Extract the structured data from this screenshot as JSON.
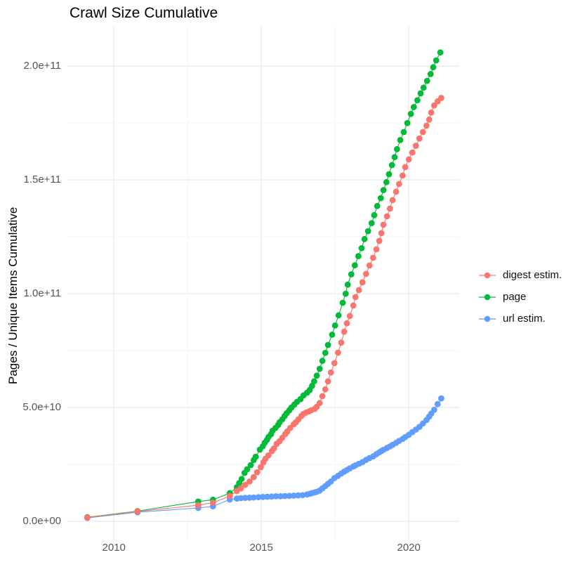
{
  "title": "Crawl Size Cumulative",
  "y_axis_title": "Pages / Unique Items Cumulative",
  "colors": {
    "background": "#FFFFFF",
    "grid_major": "#EBEBEB",
    "grid_minor": "#F4F4F4",
    "axis_text": "#555555",
    "title_text": "#000000",
    "digest_estim": "#F8766D",
    "page": "#00BA38",
    "url_estim": "#619CFF"
  },
  "chart_data": {
    "type": "scatter",
    "title": "Crawl Size Cumulative",
    "xlabel": "",
    "ylabel": "Pages / Unique Items Cumulative",
    "grid": true,
    "legend_position": "right",
    "x_unit": "year",
    "y_unit": "items (values below in units of 1e9)",
    "xlim": [
      2008.4,
      2021.71
    ],
    "ylim_e9": [
      -8,
      217.3
    ],
    "x_ticks": [
      {
        "value": 2010,
        "label": "2010"
      },
      {
        "value": 2015,
        "label": "2015"
      },
      {
        "value": 2020,
        "label": "2020"
      }
    ],
    "x_minor_ticks": [
      2012.5,
      2017.5
    ],
    "y_ticks": [
      {
        "value": 0,
        "label": "0.0e+00"
      },
      {
        "value": 50,
        "label": "5.0e+10"
      },
      {
        "value": 100,
        "label": "1.0e+11"
      },
      {
        "value": 150,
        "label": "1.5e+11"
      },
      {
        "value": 200,
        "label": "2.0e+11"
      }
    ],
    "y_minor_ticks": [
      25,
      75,
      125,
      175
    ],
    "draw_order": [
      "page",
      "url estim.",
      "digest estim."
    ],
    "series": [
      {
        "name": "digest estim.",
        "color": "#F8766D",
        "points_year_e9": [
          [
            2009.1,
            1.7
          ],
          [
            2010.8,
            4.3
          ],
          [
            2012.86,
            7.1
          ],
          [
            2013.36,
            8.2
          ],
          [
            2013.93,
            11.1
          ],
          [
            2014.17,
            13.3
          ],
          [
            2014.3,
            14.5
          ],
          [
            2014.45,
            16.0
          ],
          [
            2014.6,
            17.5
          ],
          [
            2014.74,
            19.4
          ],
          [
            2014.86,
            21.6
          ],
          [
            2014.98,
            23.8
          ],
          [
            2015.07,
            25.9
          ],
          [
            2015.14,
            27.5
          ],
          [
            2015.24,
            29.0
          ],
          [
            2015.36,
            30.9
          ],
          [
            2015.43,
            32.1
          ],
          [
            2015.52,
            34.0
          ],
          [
            2015.62,
            35.2
          ],
          [
            2015.71,
            36.7
          ],
          [
            2015.81,
            38.3
          ],
          [
            2015.88,
            39.5
          ],
          [
            2015.98,
            41.0
          ],
          [
            2016.1,
            42.6
          ],
          [
            2016.17,
            43.5
          ],
          [
            2016.26,
            44.8
          ],
          [
            2016.36,
            46.3
          ],
          [
            2016.43,
            47.2
          ],
          [
            2016.52,
            47.8
          ],
          [
            2016.62,
            48.3
          ],
          [
            2016.69,
            48.8
          ],
          [
            2016.81,
            49.4
          ],
          [
            2016.88,
            50.3
          ],
          [
            2016.98,
            52.0
          ],
          [
            2017.07,
            55.0
          ],
          [
            2017.17,
            58.0
          ],
          [
            2017.26,
            61.5
          ],
          [
            2017.36,
            65.4
          ],
          [
            2017.48,
            69.5
          ],
          [
            2017.6,
            74.1
          ],
          [
            2017.71,
            78.5
          ],
          [
            2017.81,
            83.3
          ],
          [
            2017.9,
            87.0
          ],
          [
            2018.0,
            90.2
          ],
          [
            2018.12,
            94.8
          ],
          [
            2018.19,
            98.5
          ],
          [
            2018.31,
            101.6
          ],
          [
            2018.43,
            105.0
          ],
          [
            2018.55,
            108.7
          ],
          [
            2018.67,
            112.4
          ],
          [
            2018.79,
            115.8
          ],
          [
            2018.9,
            119.5
          ],
          [
            2019.0,
            123.2
          ],
          [
            2019.07,
            126.6
          ],
          [
            2019.14,
            130.3
          ],
          [
            2019.26,
            134.0
          ],
          [
            2019.36,
            137.4
          ],
          [
            2019.45,
            141.1
          ],
          [
            2019.57,
            144.8
          ],
          [
            2019.67,
            148.2
          ],
          [
            2019.79,
            151.9
          ],
          [
            2019.88,
            155.6
          ],
          [
            2020.0,
            159.0
          ],
          [
            2020.12,
            162.0
          ],
          [
            2020.24,
            165.0
          ],
          [
            2020.36,
            168.2
          ],
          [
            2020.48,
            171.0
          ],
          [
            2020.6,
            173.8
          ],
          [
            2020.69,
            176.5
          ],
          [
            2020.76,
            179.6
          ],
          [
            2020.86,
            182.7
          ],
          [
            2020.98,
            184.5
          ],
          [
            2021.1,
            186.0
          ]
        ]
      },
      {
        "name": "page",
        "color": "#00BA38",
        "points_year_e9": [
          [
            2009.1,
            1.8
          ],
          [
            2010.8,
            4.5
          ],
          [
            2012.86,
            8.7
          ],
          [
            2013.36,
            9.5
          ],
          [
            2013.93,
            12.4
          ],
          [
            2014.17,
            15.0
          ],
          [
            2014.25,
            16.8
          ],
          [
            2014.33,
            18.6
          ],
          [
            2014.43,
            21.3
          ],
          [
            2014.52,
            22.9
          ],
          [
            2014.64,
            24.7
          ],
          [
            2014.74,
            26.9
          ],
          [
            2014.81,
            28.4
          ],
          [
            2014.95,
            31.5
          ],
          [
            2015.05,
            33.0
          ],
          [
            2015.12,
            34.6
          ],
          [
            2015.19,
            35.8
          ],
          [
            2015.24,
            37.0
          ],
          [
            2015.33,
            38.3
          ],
          [
            2015.38,
            39.8
          ],
          [
            2015.48,
            41.0
          ],
          [
            2015.57,
            42.3
          ],
          [
            2015.62,
            43.5
          ],
          [
            2015.71,
            44.8
          ],
          [
            2015.79,
            46.3
          ],
          [
            2015.86,
            47.5
          ],
          [
            2015.95,
            48.8
          ],
          [
            2016.02,
            50.0
          ],
          [
            2016.12,
            51.3
          ],
          [
            2016.21,
            52.5
          ],
          [
            2016.33,
            53.7
          ],
          [
            2016.43,
            55.3
          ],
          [
            2016.55,
            56.5
          ],
          [
            2016.64,
            57.7
          ],
          [
            2016.72,
            59.5
          ],
          [
            2016.79,
            61.5
          ],
          [
            2016.88,
            64.0
          ],
          [
            2016.98,
            67.0
          ],
          [
            2017.07,
            70.5
          ],
          [
            2017.17,
            74.0
          ],
          [
            2017.26,
            77.5
          ],
          [
            2017.4,
            82.0
          ],
          [
            2017.5,
            86.0
          ],
          [
            2017.62,
            90.5
          ],
          [
            2017.76,
            96.0
          ],
          [
            2017.86,
            100.0
          ],
          [
            2017.93,
            104.0
          ],
          [
            2018.05,
            108.5
          ],
          [
            2018.17,
            112.5
          ],
          [
            2018.29,
            116.5
          ],
          [
            2018.4,
            120.0
          ],
          [
            2018.5,
            124.0
          ],
          [
            2018.62,
            127.5
          ],
          [
            2018.74,
            131.0
          ],
          [
            2018.83,
            134.5
          ],
          [
            2018.93,
            138.5
          ],
          [
            2019.05,
            142.0
          ],
          [
            2019.14,
            145.5
          ],
          [
            2019.24,
            149.0
          ],
          [
            2019.33,
            152.5
          ],
          [
            2019.43,
            156.5
          ],
          [
            2019.52,
            160.0
          ],
          [
            2019.6,
            163.5
          ],
          [
            2019.71,
            167.5
          ],
          [
            2019.83,
            171.0
          ],
          [
            2019.95,
            175.0
          ],
          [
            2020.07,
            179.0
          ],
          [
            2020.17,
            182.0
          ],
          [
            2020.29,
            185.0
          ],
          [
            2020.4,
            188.0
          ],
          [
            2020.5,
            190.5
          ],
          [
            2020.62,
            193.5
          ],
          [
            2020.74,
            196.5
          ],
          [
            2020.83,
            199.5
          ],
          [
            2020.93,
            202.5
          ],
          [
            2021.07,
            206.0
          ]
        ]
      },
      {
        "name": "url estim.",
        "color": "#619CFF",
        "points_year_e9": [
          [
            2009.1,
            1.5
          ],
          [
            2010.8,
            4.0
          ],
          [
            2012.86,
            5.9
          ],
          [
            2013.36,
            6.6
          ],
          [
            2013.93,
            9.6
          ],
          [
            2014.17,
            10.0
          ],
          [
            2014.3,
            10.2
          ],
          [
            2014.45,
            10.3
          ],
          [
            2014.6,
            10.4
          ],
          [
            2014.74,
            10.5
          ],
          [
            2014.9,
            10.6
          ],
          [
            2015.05,
            10.7
          ],
          [
            2015.2,
            10.8
          ],
          [
            2015.35,
            10.9
          ],
          [
            2015.5,
            11.0
          ],
          [
            2015.65,
            11.0
          ],
          [
            2015.8,
            11.1
          ],
          [
            2015.95,
            11.2
          ],
          [
            2016.1,
            11.3
          ],
          [
            2016.25,
            11.4
          ],
          [
            2016.4,
            11.5
          ],
          [
            2016.55,
            11.8
          ],
          [
            2016.64,
            12.1
          ],
          [
            2016.72,
            12.4
          ],
          [
            2016.81,
            12.7
          ],
          [
            2016.88,
            13.0
          ],
          [
            2016.98,
            13.5
          ],
          [
            2017.07,
            14.5
          ],
          [
            2017.17,
            15.5
          ],
          [
            2017.26,
            16.5
          ],
          [
            2017.36,
            17.5
          ],
          [
            2017.48,
            19.0
          ],
          [
            2017.6,
            20.0
          ],
          [
            2017.71,
            21.0
          ],
          [
            2017.81,
            21.8
          ],
          [
            2017.9,
            22.5
          ],
          [
            2018.0,
            23.3
          ],
          [
            2018.12,
            24.1
          ],
          [
            2018.19,
            24.6
          ],
          [
            2018.31,
            25.3
          ],
          [
            2018.43,
            26.0
          ],
          [
            2018.55,
            27.0
          ],
          [
            2018.67,
            27.8
          ],
          [
            2018.79,
            28.5
          ],
          [
            2018.9,
            29.5
          ],
          [
            2019.0,
            30.3
          ],
          [
            2019.07,
            30.9
          ],
          [
            2019.14,
            31.4
          ],
          [
            2019.26,
            32.2
          ],
          [
            2019.36,
            32.9
          ],
          [
            2019.45,
            33.6
          ],
          [
            2019.57,
            34.5
          ],
          [
            2019.67,
            35.3
          ],
          [
            2019.79,
            36.2
          ],
          [
            2019.88,
            37.0
          ],
          [
            2020.0,
            38.0
          ],
          [
            2020.12,
            39.2
          ],
          [
            2020.24,
            40.3
          ],
          [
            2020.36,
            41.5
          ],
          [
            2020.48,
            43.0
          ],
          [
            2020.6,
            44.5
          ],
          [
            2020.69,
            46.0
          ],
          [
            2020.76,
            47.3
          ],
          [
            2020.86,
            49.0
          ],
          [
            2020.98,
            51.5
          ],
          [
            2021.1,
            54.0
          ]
        ]
      }
    ]
  }
}
